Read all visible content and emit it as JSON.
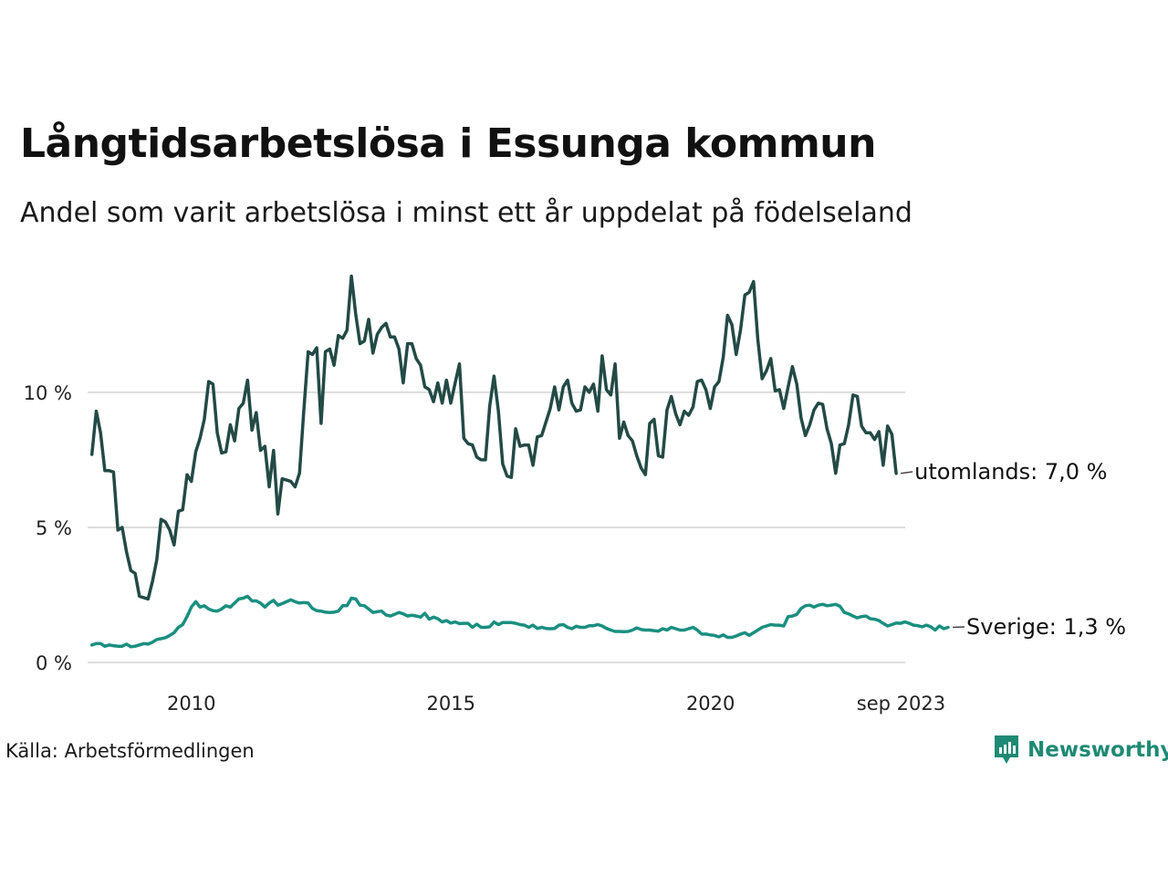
{
  "title": "Långtidsarbetslösa i Essunga kommun",
  "subtitle": "Andel som varit arbetslösa i minst ett år uppdelat på födelseland",
  "source": "Källa: Arbetsförmedlingen",
  "brand": "Newsworthy",
  "colors": {
    "utomlands": "#234a45",
    "sverige": "#1a8f80",
    "grid": "#dddddd",
    "brand": "#1f8a74"
  },
  "chart_data": {
    "type": "line",
    "title": "Långtidsarbetslösa i Essunga kommun",
    "subtitle": "Andel som varit arbetslösa i minst ett år uppdelat på födelseland",
    "xlabel": "",
    "ylabel": "",
    "x_start": 2008.083,
    "x_step": 0.0833,
    "xlim": [
      2008.0,
      2023.75
    ],
    "ylim": [
      0,
      15.3
    ],
    "y_ticks": [
      {
        "value": 0,
        "label": "0 %"
      },
      {
        "value": 5,
        "label": "5 %"
      },
      {
        "value": 10,
        "label": "10 %"
      }
    ],
    "x_ticks": [
      {
        "value": 2010,
        "label": "2010"
      },
      {
        "value": 2015,
        "label": "2015"
      },
      {
        "value": 2020,
        "label": "2020"
      },
      {
        "value": 2023.67,
        "label": "sep 2023"
      }
    ],
    "series": [
      {
        "name": "utomlands",
        "end_label": "utomlands: 7,0 %",
        "values": [
          7.7,
          9.3,
          8.5,
          7.1,
          7.1,
          7.05,
          4.9,
          5.0,
          4.1,
          3.4,
          3.3,
          2.45,
          2.4,
          2.35,
          3.0,
          3.8,
          5.3,
          5.2,
          4.9,
          4.35,
          5.6,
          5.65,
          6.95,
          6.7,
          7.8,
          8.3,
          9.0,
          10.4,
          10.3,
          8.5,
          7.75,
          7.8,
          8.8,
          8.2,
          9.4,
          9.6,
          10.45,
          8.6,
          9.25,
          7.85,
          8.0,
          6.5,
          7.85,
          5.5,
          6.8,
          6.75,
          6.7,
          6.5,
          7.0,
          9.3,
          11.5,
          11.4,
          11.65,
          8.85,
          11.5,
          11.6,
          11.0,
          12.1,
          12.0,
          12.3,
          14.3,
          12.9,
          11.8,
          11.9,
          12.7,
          11.45,
          12.15,
          12.4,
          12.55,
          12.05,
          12.05,
          11.6,
          10.35,
          11.8,
          11.8,
          11.25,
          11.0,
          10.2,
          10.1,
          9.65,
          10.35,
          9.6,
          10.45,
          9.6,
          10.35,
          11.05,
          8.3,
          8.1,
          8.05,
          7.6,
          7.5,
          7.5,
          9.5,
          10.6,
          9.3,
          7.35,
          6.9,
          6.85,
          8.65,
          8.0,
          8.05,
          8.05,
          7.3,
          8.35,
          8.4,
          8.9,
          9.4,
          10.2,
          9.35,
          10.2,
          10.45,
          9.6,
          9.3,
          9.35,
          10.2,
          10.0,
          10.3,
          9.3,
          11.35,
          10.1,
          9.9,
          11.05,
          8.3,
          8.9,
          8.4,
          8.2,
          7.65,
          7.2,
          6.95,
          8.85,
          9.0,
          7.65,
          7.6,
          9.35,
          9.85,
          9.2,
          8.8,
          9.3,
          9.15,
          9.45,
          10.4,
          10.45,
          10.1,
          9.4,
          10.2,
          10.4,
          11.3,
          12.85,
          12.5,
          11.4,
          12.3,
          13.6,
          13.7,
          14.1,
          11.95,
          10.5,
          10.8,
          11.25,
          10.05,
          10.1,
          9.4,
          10.2,
          10.95,
          10.3,
          9.05,
          8.4,
          8.8,
          9.35,
          9.6,
          9.55,
          8.65,
          8.1,
          7.0,
          8.05,
          8.1,
          8.8,
          9.9,
          9.85,
          8.75,
          8.5,
          8.5,
          8.25,
          8.55,
          7.3,
          8.75,
          8.45,
          7.0
        ]
      },
      {
        "name": "Sverige",
        "end_label": "Sverige: 1,3 %",
        "values": [
          0.65,
          0.7,
          0.7,
          0.6,
          0.65,
          0.62,
          0.6,
          0.6,
          0.68,
          0.58,
          0.6,
          0.65,
          0.7,
          0.68,
          0.75,
          0.85,
          0.88,
          0.92,
          1.0,
          1.1,
          1.3,
          1.4,
          1.7,
          2.05,
          2.25,
          2.05,
          2.1,
          1.98,
          1.92,
          1.9,
          1.98,
          2.1,
          2.05,
          2.2,
          2.35,
          2.38,
          2.45,
          2.28,
          2.28,
          2.2,
          2.05,
          2.2,
          2.3,
          2.12,
          2.18,
          2.25,
          2.32,
          2.25,
          2.2,
          2.22,
          2.2,
          2.0,
          1.92,
          1.9,
          1.86,
          1.85,
          1.86,
          1.9,
          2.1,
          2.1,
          2.38,
          2.35,
          2.12,
          2.1,
          1.98,
          1.85,
          1.88,
          1.9,
          1.76,
          1.72,
          1.78,
          1.85,
          1.8,
          1.72,
          1.75,
          1.72,
          1.68,
          1.82,
          1.6,
          1.68,
          1.62,
          1.5,
          1.55,
          1.46,
          1.5,
          1.44,
          1.45,
          1.45,
          1.3,
          1.42,
          1.3,
          1.3,
          1.32,
          1.5,
          1.4,
          1.48,
          1.48,
          1.48,
          1.45,
          1.4,
          1.38,
          1.3,
          1.38,
          1.26,
          1.3,
          1.26,
          1.25,
          1.26,
          1.38,
          1.4,
          1.3,
          1.25,
          1.34,
          1.3,
          1.3,
          1.36,
          1.36,
          1.4,
          1.35,
          1.26,
          1.2,
          1.15,
          1.15,
          1.14,
          1.15,
          1.2,
          1.28,
          1.22,
          1.2,
          1.2,
          1.18,
          1.16,
          1.25,
          1.2,
          1.3,
          1.25,
          1.2,
          1.2,
          1.25,
          1.3,
          1.2,
          1.05,
          1.05,
          1.02,
          1.0,
          0.95,
          1.02,
          0.93,
          0.93,
          0.98,
          1.05,
          1.1,
          1.0,
          1.1,
          1.2,
          1.3,
          1.35,
          1.4,
          1.38,
          1.38,
          1.35,
          1.7,
          1.72,
          1.78,
          2.0,
          2.1,
          2.12,
          2.05,
          2.12,
          2.15,
          2.1,
          2.12,
          2.15,
          2.08,
          1.85,
          1.8,
          1.72,
          1.65,
          1.7,
          1.72,
          1.62,
          1.6,
          1.55,
          1.45,
          1.35,
          1.4,
          1.46,
          1.45,
          1.5,
          1.45,
          1.38,
          1.36,
          1.32,
          1.38,
          1.32,
          1.2,
          1.35,
          1.25,
          1.3
        ]
      }
    ]
  }
}
